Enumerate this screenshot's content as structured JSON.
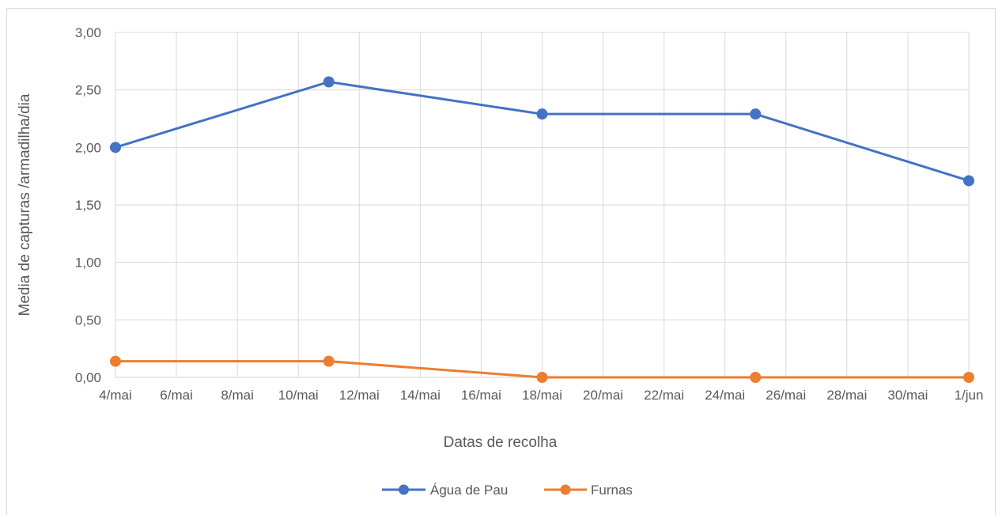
{
  "chart_data": {
    "type": "line",
    "xlabel": "Datas de recolha",
    "ylabel": "Media de capturas /armadilha/dia",
    "x_ticks": [
      "4/mai",
      "6/mai",
      "8/mai",
      "10/mai",
      "12/mai",
      "14/mai",
      "16/mai",
      "18/mai",
      "20/mai",
      "22/mai",
      "24/mai",
      "26/mai",
      "28/mai",
      "30/mai",
      "1/jun"
    ],
    "y_ticks": [
      "0,00",
      "0,50",
      "1,00",
      "1,50",
      "2,00",
      "2,50",
      "3,00"
    ],
    "xlim": [
      "4/mai",
      "1/jun"
    ],
    "ylim": [
      0,
      3
    ],
    "grid": true,
    "legend_position": "bottom",
    "x_dates": [
      "4/mai",
      "11/mai",
      "18/mai",
      "25/mai",
      "1/jun"
    ],
    "series": [
      {
        "name": "Água de Pau",
        "color": "#4472C4",
        "values": [
          2.0,
          2.57,
          2.29,
          2.29,
          1.71
        ]
      },
      {
        "name": "Furnas",
        "color": "#ED7D31",
        "values": [
          0.14,
          0.14,
          0.0,
          0.0,
          0.0
        ]
      }
    ]
  }
}
